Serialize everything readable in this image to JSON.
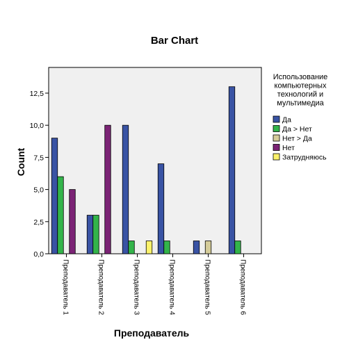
{
  "chart_data": {
    "type": "bar",
    "title": "Bar Chart",
    "xlabel": "Преподаватель",
    "ylabel": "Count",
    "ylim": [
      0,
      14.5
    ],
    "yticks": [
      "0,0",
      "2,5",
      "5,0",
      "7,5",
      "10,0",
      "12,5"
    ],
    "ytick_values": [
      0,
      2.5,
      5,
      7.5,
      10,
      12.5
    ],
    "categories": [
      "Преподаватель 1",
      "Преподаватель 2",
      "Преподаватель 3",
      "Преподаватель 4",
      "Преподаватель 5",
      "Преподаватель 6"
    ],
    "legend_title": [
      "Использование",
      "компьютерных",
      "технологий и",
      "мультимедиа"
    ],
    "legend_position": "right",
    "grid": false,
    "series": [
      {
        "name": "Да",
        "color": "#3953a4",
        "values": [
          9,
          3,
          10,
          7,
          1,
          13
        ]
      },
      {
        "name": "Да > Нет",
        "color": "#33b44a",
        "values": [
          6,
          3,
          1,
          1,
          0,
          1
        ]
      },
      {
        "name": "Нет > Да",
        "color": "#d5cc9a",
        "values": [
          0,
          0,
          0,
          0,
          1,
          0
        ]
      },
      {
        "name": "Нет",
        "color": "#7b2375",
        "values": [
          5,
          10,
          0,
          0,
          0,
          0
        ]
      },
      {
        "name": "Затрудняюсь",
        "color": "#fbf26b",
        "values": [
          0,
          0,
          1,
          0,
          0,
          0
        ]
      }
    ]
  }
}
